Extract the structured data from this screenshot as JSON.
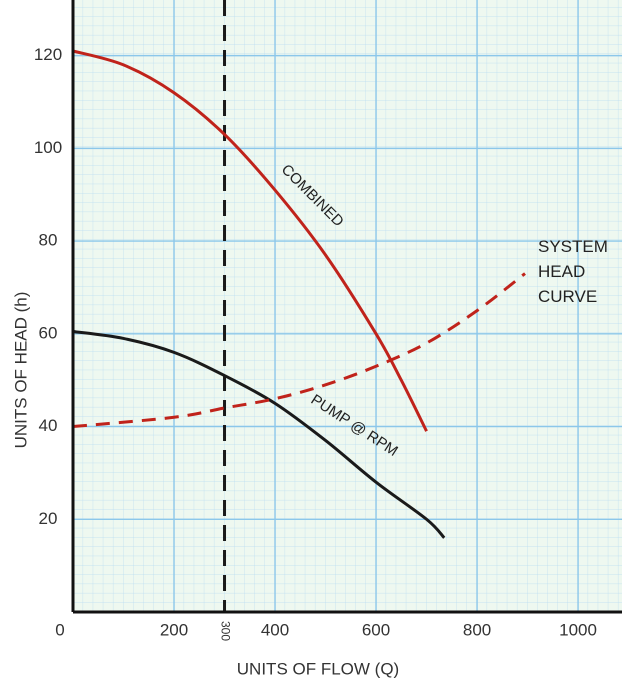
{
  "chart_data": {
    "type": "line",
    "x_label": "UNITS OF FLOW (Q)",
    "y_label": "UNITS OF HEAD (h)",
    "xlim": [
      0,
      1087
    ],
    "ylim": [
      0,
      132
    ],
    "xticks": [
      0,
      200,
      400,
      600,
      800,
      1000
    ],
    "yticks": [
      20,
      40,
      60,
      80,
      100,
      120
    ],
    "vline": 300,
    "grid": true,
    "series": [
      {
        "name": "COMBINED",
        "color": "#c0231b",
        "dash": false,
        "x": [
          0,
          100,
          200,
          300,
          400,
          500,
          600,
          650,
          700
        ],
        "values": [
          121,
          118,
          112,
          103,
          91,
          77,
          60,
          50,
          39
        ]
      },
      {
        "name": "PUMP @ RPM",
        "color": "#1a1a1a",
        "dash": false,
        "x": [
          0,
          100,
          200,
          300,
          400,
          500,
          600,
          700,
          735
        ],
        "values": [
          60.5,
          59,
          56,
          51,
          45,
          37,
          28,
          20,
          16
        ]
      },
      {
        "name": "SYSTEM HEAD CURVE",
        "color": "#c0231b",
        "dash": true,
        "x": [
          0,
          200,
          300,
          400,
          500,
          600,
          700,
          800,
          895
        ],
        "values": [
          40,
          42,
          44,
          46,
          49,
          53,
          58,
          65,
          73
        ]
      }
    ]
  }
}
